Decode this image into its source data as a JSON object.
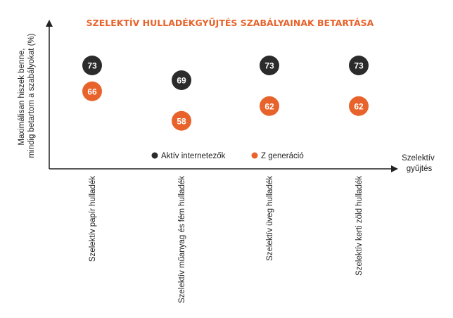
{
  "chart_data": {
    "type": "scatter",
    "title": "SZELEKTÍV HULLADÉKGYŰJTÉS SZABÁLYAINAK BETARTÁSA",
    "ylabel_lines": [
      "Maximálisan hiszek benne,",
      "mindig betartom a szabályokat (%)"
    ],
    "xlabel_lines": [
      "Szelektív",
      "gyűjtés"
    ],
    "categories": [
      "Szelektív papír hulladék",
      "Szelektív műanyag és fém hulladék",
      "Szelektív üveg hulladék",
      "Szelektív kerti zöld hulladék"
    ],
    "ylim": [
      45,
      85
    ],
    "grid": false,
    "legend_position": "bottom-center",
    "series": [
      {
        "name": "Aktív internetezők",
        "color": "#2b2b2b",
        "values": [
          73,
          69,
          73,
          73
        ]
      },
      {
        "name": "Z generáció",
        "color": "#e8632b",
        "values": [
          66,
          58,
          62,
          62
        ]
      }
    ]
  }
}
